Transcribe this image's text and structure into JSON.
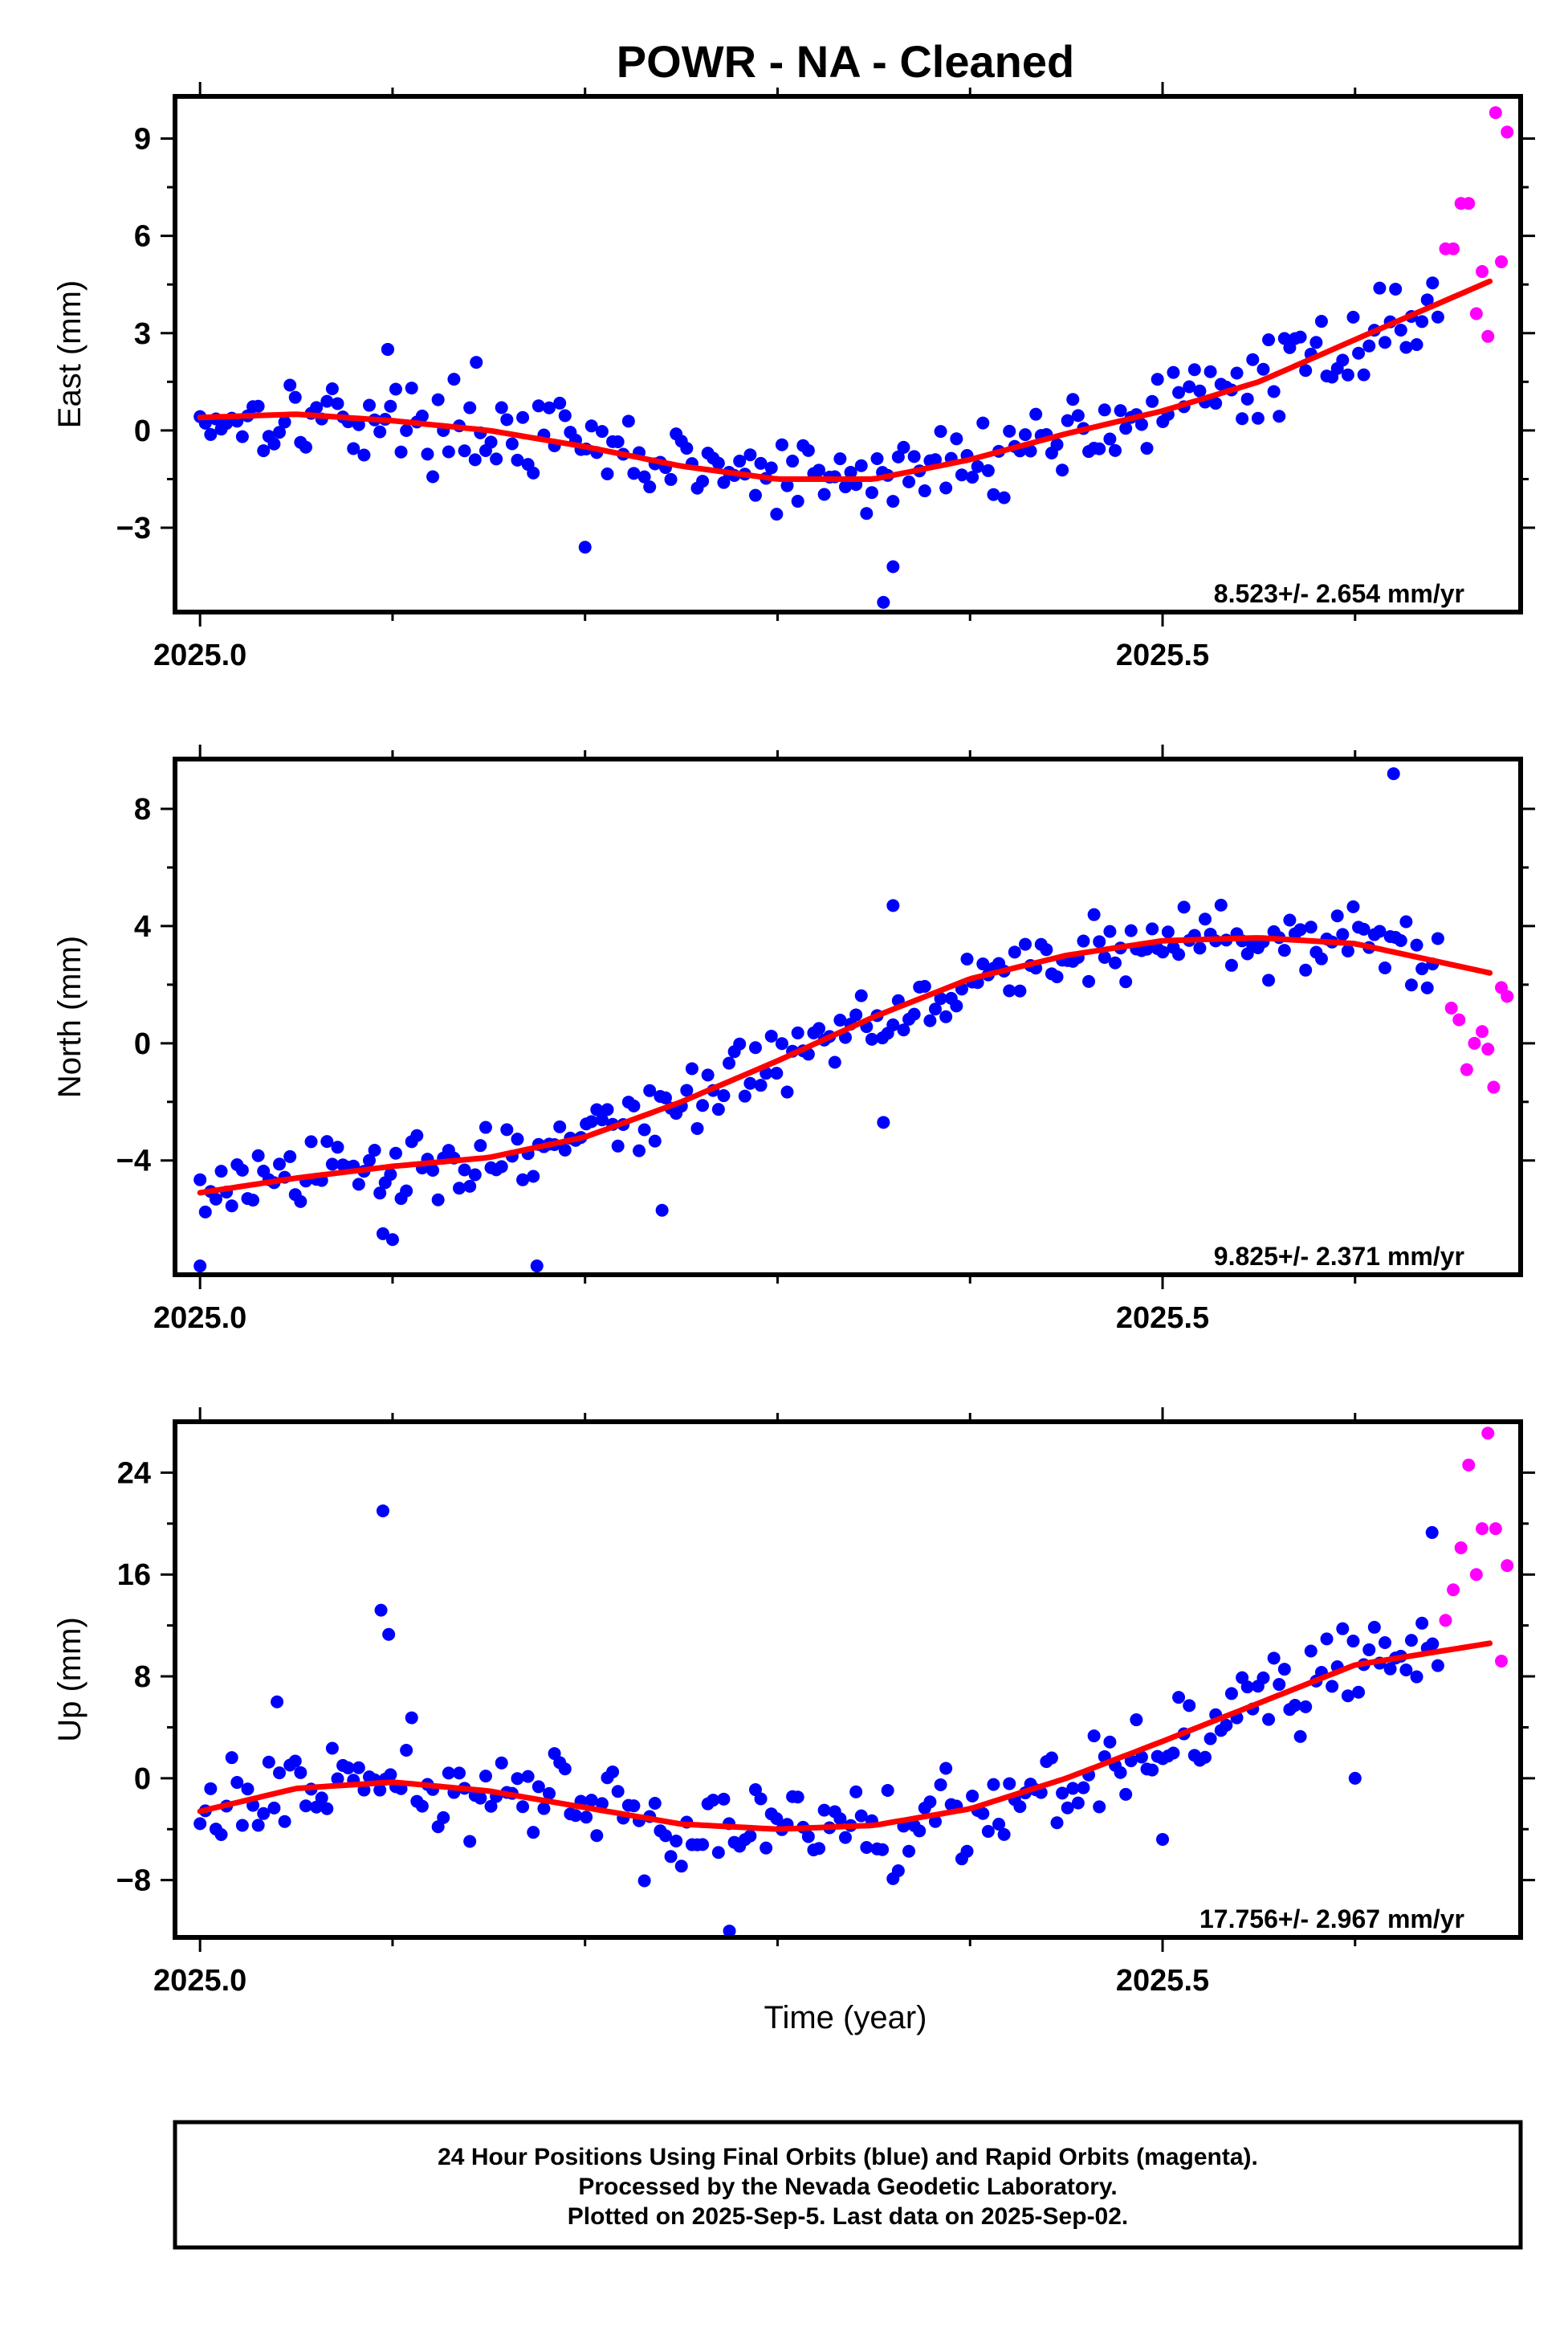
{
  "title": "POWR  - NA - Cleaned",
  "xlabel": "Time (year)",
  "x_tick_labels": [
    "2025.0",
    "2025.5"
  ],
  "footer": [
    "24 Hour Positions Using Final Orbits (blue) and Rapid Orbits (magenta).",
    "Processed by the Nevada Geodetic Laboratory.",
    "Plotted on 2025-Sep-5. Last data on 2025-Sep-02."
  ],
  "colors": {
    "final": "#0000ff",
    "rapid": "#ff00ff",
    "fit": "#ff0000",
    "frame": "#000000"
  },
  "chart_data": [
    {
      "type": "scatter",
      "panel": "east",
      "ylabel": "East (mm)",
      "rate_label": "8.523+/- 2.654 mm/yr",
      "xlim": [
        2024.987,
        2025.686
      ],
      "ylim": [
        -5.6,
        10.3
      ],
      "yticks": [
        -3,
        0,
        3,
        6,
        9
      ],
      "final_scatter_amp": 0.9,
      "fit": {
        "x": [
          2025.0,
          2025.05,
          2025.1,
          2025.15,
          2025.2,
          2025.25,
          2025.3,
          2025.35,
          2025.4,
          2025.45,
          2025.5,
          2025.55,
          2025.6,
          2025.67
        ],
        "y": [
          0.4,
          0.5,
          0.3,
          0.0,
          -0.5,
          -1.1,
          -1.5,
          -1.5,
          -0.9,
          -0.1,
          0.6,
          1.5,
          2.8,
          4.6
        ]
      },
      "outliers": [
        [
          2025.2,
          -3.6
        ],
        [
          2025.355,
          -5.3
        ],
        [
          2025.36,
          -4.2
        ],
        [
          2025.0975,
          2.5
        ],
        [
          2025.1435,
          2.1
        ],
        [
          2025.0975,
          2.5
        ]
      ],
      "rapid": [
        [
          2025.647,
          5.6
        ],
        [
          2025.651,
          5.6
        ],
        [
          2025.655,
          7.0
        ],
        [
          2025.659,
          7.0
        ],
        [
          2025.663,
          3.6
        ],
        [
          2025.666,
          4.9
        ],
        [
          2025.669,
          2.9
        ],
        [
          2025.673,
          9.8
        ],
        [
          2025.676,
          5.2
        ],
        [
          2025.679,
          9.2
        ]
      ]
    },
    {
      "type": "scatter",
      "panel": "north",
      "ylabel": "North (mm)",
      "rate_label": "9.825+/- 2.371 mm/yr",
      "xlim": [
        2024.987,
        2025.686
      ],
      "ylim": [
        -7.9,
        9.7
      ],
      "yticks": [
        -4,
        0,
        4,
        8
      ],
      "final_scatter_amp": 0.9,
      "fit": {
        "x": [
          2025.0,
          2025.05,
          2025.1,
          2025.15,
          2025.2,
          2025.25,
          2025.3,
          2025.35,
          2025.4,
          2025.45,
          2025.5,
          2025.55,
          2025.6,
          2025.67
        ],
        "y": [
          -5.1,
          -4.6,
          -4.2,
          -3.9,
          -3.2,
          -2.0,
          -0.6,
          0.9,
          2.2,
          3.0,
          3.5,
          3.6,
          3.4,
          2.4
        ]
      },
      "outliers": [
        [
          2025.62,
          9.2
        ],
        [
          2025.175,
          -7.6
        ],
        [
          2025.36,
          4.7
        ],
        [
          2025.355,
          -2.7
        ],
        [
          2025.1,
          -6.7
        ],
        [
          2025.0,
          -7.6
        ],
        [
          2025.24,
          -5.7
        ],
        [
          2025.095,
          -6.5
        ]
      ],
      "rapid": [
        [
          2025.65,
          1.2
        ],
        [
          2025.654,
          0.8
        ],
        [
          2025.658,
          -0.9
        ],
        [
          2025.662,
          0.0
        ],
        [
          2025.666,
          0.4
        ],
        [
          2025.669,
          -0.2
        ],
        [
          2025.672,
          -1.5
        ],
        [
          2025.676,
          1.9
        ],
        [
          2025.679,
          1.6
        ]
      ]
    },
    {
      "type": "scatter",
      "panel": "up",
      "ylabel": "Up (mm)",
      "rate_label": "17.756+/- 2.967 mm/yr",
      "xlim": [
        2024.987,
        2025.686
      ],
      "ylim": [
        -12.5,
        28.0
      ],
      "yticks": [
        -8,
        0,
        8,
        16,
        24
      ],
      "final_scatter_amp": 2.8,
      "fit": {
        "x": [
          2025.0,
          2025.05,
          2025.1,
          2025.15,
          2025.2,
          2025.25,
          2025.3,
          2025.35,
          2025.4,
          2025.45,
          2025.5,
          2025.55,
          2025.6,
          2025.67
        ],
        "y": [
          -2.6,
          -0.8,
          -0.3,
          -1.0,
          -2.3,
          -3.6,
          -4.0,
          -3.7,
          -2.4,
          0.0,
          2.9,
          5.9,
          8.9,
          10.6
        ]
      },
      "outliers": [
        [
          2025.095,
          21.0
        ],
        [
          2025.094,
          13.2
        ],
        [
          2025.098,
          11.3
        ],
        [
          2025.64,
          19.3
        ],
        [
          2025.6,
          0.0
        ],
        [
          2025.5,
          -4.8
        ],
        [
          2025.275,
          -12.0
        ],
        [
          2025.04,
          6.0
        ]
      ],
      "rapid": [
        [
          2025.647,
          12.4
        ],
        [
          2025.651,
          14.8
        ],
        [
          2025.655,
          18.1
        ],
        [
          2025.659,
          24.6
        ],
        [
          2025.663,
          16.0
        ],
        [
          2025.666,
          19.6
        ],
        [
          2025.669,
          27.1
        ],
        [
          2025.673,
          19.6
        ],
        [
          2025.676,
          9.2
        ],
        [
          2025.679,
          16.7
        ]
      ]
    }
  ]
}
